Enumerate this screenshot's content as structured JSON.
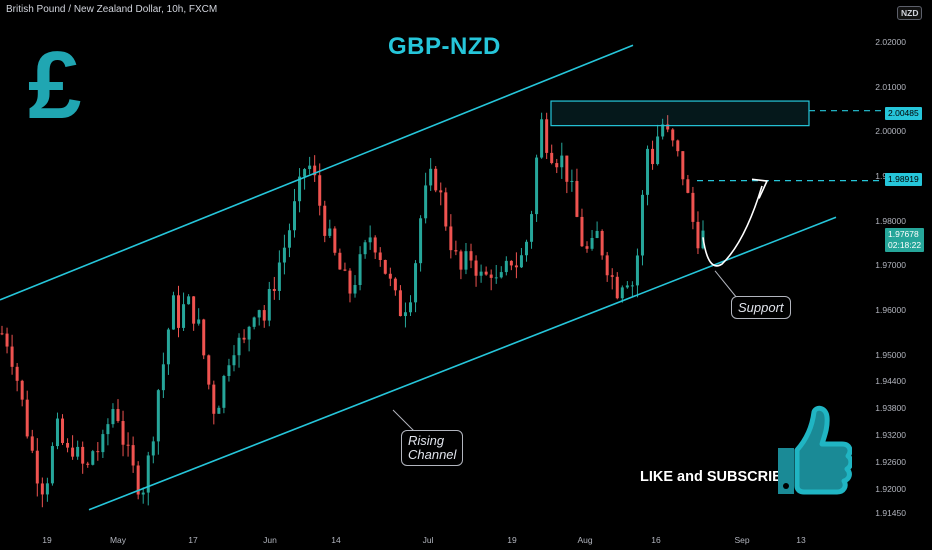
{
  "header": {
    "symbol_line": "British Pound / New Zealand Dollar, 10h, FXCM",
    "currency_badge": "NZD"
  },
  "title": "GBP-NZD",
  "logo_symbol": "£",
  "annotations": {
    "support": "Support",
    "rising_line1": "Rising",
    "rising_line2": "Channel",
    "cta": "LIKE and SUBSCRIBE"
  },
  "colors": {
    "up_candle": "#26a69a",
    "down_candle": "#ef5350",
    "channel": "#26c6da",
    "target_line": "#26c6da",
    "price_tag": "#26c6da",
    "current_tag": "#26a69a"
  },
  "icons": [
    "pound-sign-icon",
    "thumbs-up-icon"
  ],
  "price_tags": {
    "resistance": "2.00485",
    "target": "1.98919",
    "current": "1.97678",
    "countdown": "02:18:22"
  },
  "chart_data": {
    "type": "candlestick",
    "title": "GBP-NZD",
    "symbol": "British Pound / New Zealand Dollar",
    "timeframe": "10h",
    "source": "FXCM",
    "ylim": [
      1.9115,
      2.035
    ],
    "y_ticks": [
      "1.91450",
      "1.92000",
      "1.92600",
      "1.93200",
      "1.93800",
      "1.94400",
      "1.95000",
      "1.96000",
      "1.97000",
      "1.98000",
      "1.99000",
      "2.00000",
      "2.01000",
      "2.02000",
      "2.03000"
    ],
    "x_ticks": [
      "19",
      "May",
      "17",
      "Jun",
      "14",
      "Jul",
      "19",
      "Aug",
      "16",
      "Sep",
      "13"
    ],
    "approx_close_path": [
      1.955,
      1.953,
      1.946,
      1.938,
      1.93,
      1.924,
      1.92,
      1.928,
      1.934,
      1.927,
      1.93,
      1.926,
      1.924,
      1.93,
      1.928,
      1.935,
      1.94,
      1.932,
      1.926,
      1.922,
      1.921,
      1.929,
      1.942,
      1.95,
      1.962,
      1.958,
      1.962,
      1.96,
      1.955,
      1.945,
      1.938,
      1.942,
      1.95,
      1.954,
      1.951,
      1.958,
      1.963,
      1.958,
      1.964,
      1.97,
      1.975,
      1.981,
      1.987,
      1.994,
      1.99,
      1.983,
      1.977,
      1.972,
      1.968,
      1.964,
      1.968,
      1.972,
      1.977,
      1.975,
      1.97,
      1.965,
      1.96,
      1.962,
      1.966,
      1.98,
      1.987,
      1.991,
      1.985,
      1.978,
      1.972,
      1.968,
      1.973,
      1.97,
      1.966,
      1.97,
      1.965,
      1.968,
      1.972,
      1.97,
      1.975,
      1.985,
      2.003,
      1.998,
      1.995,
      1.994,
      1.99,
      1.982,
      1.975,
      1.972,
      1.977,
      1.973,
      1.968,
      1.965,
      1.969,
      1.966,
      1.975,
      1.997,
      1.994,
      2.003,
      1.999,
      1.996,
      1.992,
      1.984,
      1.977,
      1.9768
    ],
    "resistance_zone": [
      2.0015,
      2.007
    ],
    "resistance_level": 2.00485,
    "target_level": 1.98919,
    "current_price": 1.97678,
    "countdown": "02:18:22",
    "upper_channel": [
      [
        0,
        1.9625
      ],
      [
        633,
        2.0195
      ]
    ],
    "lower_channel": [
      [
        89,
        1.9155
      ],
      [
        836,
        1.981
      ]
    ],
    "legend": "none",
    "grid": false
  }
}
